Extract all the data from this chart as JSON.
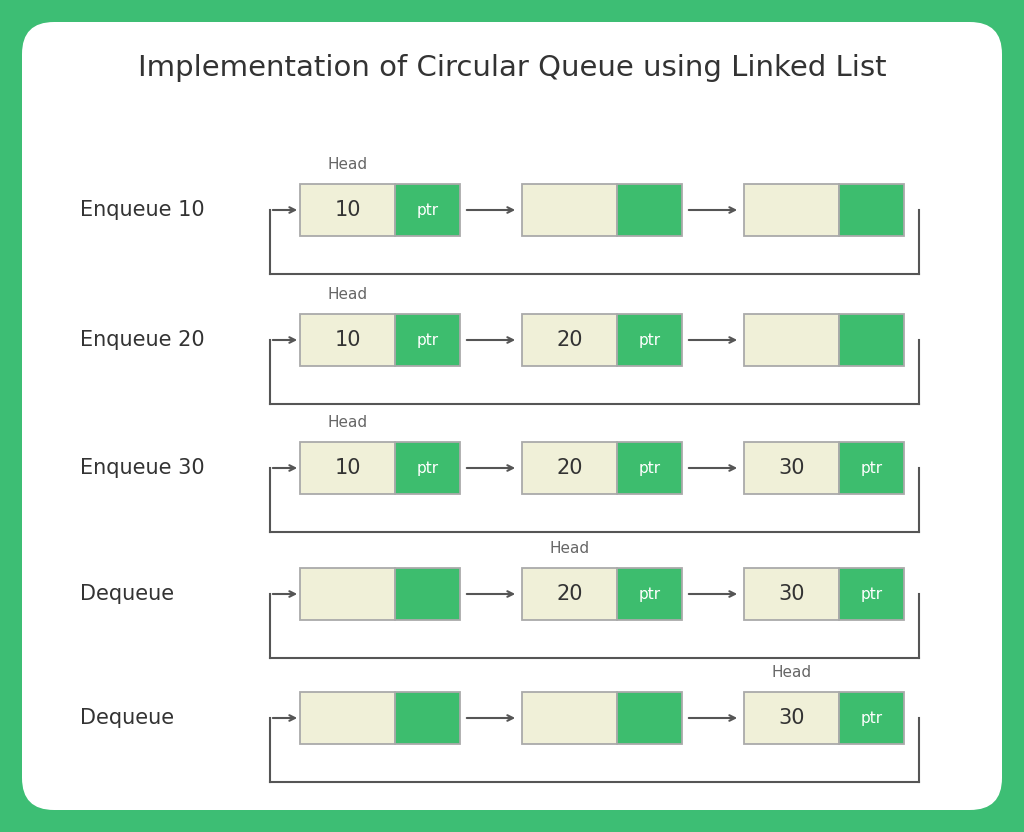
{
  "title": "Implementation of Circular Queue using Linked List",
  "title_fontsize": 21,
  "bg_outer": "#3dbe74",
  "bg_inner": "#ffffff",
  "node_color": "#f0f0d8",
  "ptr_color": "#3dbd6e",
  "text_color": "#333333",
  "gray_text": "#666666",
  "arrow_color": "#555555",
  "border_color": "#aaaaaa",
  "rows": [
    {
      "label": "Enqueue 10",
      "nodes": [
        {
          "data": "10",
          "has_ptr_text": true,
          "head": true
        },
        {
          "data": "",
          "has_ptr_text": false,
          "head": false
        },
        {
          "data": "",
          "has_ptr_text": false,
          "head": false
        }
      ]
    },
    {
      "label": "Enqueue 20",
      "nodes": [
        {
          "data": "10",
          "has_ptr_text": true,
          "head": true
        },
        {
          "data": "20",
          "has_ptr_text": true,
          "head": false
        },
        {
          "data": "",
          "has_ptr_text": false,
          "head": false
        }
      ]
    },
    {
      "label": "Enqueue 30",
      "nodes": [
        {
          "data": "10",
          "has_ptr_text": true,
          "head": true
        },
        {
          "data": "20",
          "has_ptr_text": true,
          "head": false
        },
        {
          "data": "30",
          "has_ptr_text": true,
          "head": false
        }
      ]
    },
    {
      "label": "Dequeue",
      "nodes": [
        {
          "data": "",
          "has_ptr_text": false,
          "head": false
        },
        {
          "data": "20",
          "has_ptr_text": true,
          "head": true
        },
        {
          "data": "30",
          "has_ptr_text": true,
          "head": false
        }
      ]
    },
    {
      "label": "Dequeue",
      "nodes": [
        {
          "data": "",
          "has_ptr_text": false,
          "head": false
        },
        {
          "data": "",
          "has_ptr_text": false,
          "head": false
        },
        {
          "data": "30",
          "has_ptr_text": true,
          "head": true
        }
      ]
    }
  ]
}
